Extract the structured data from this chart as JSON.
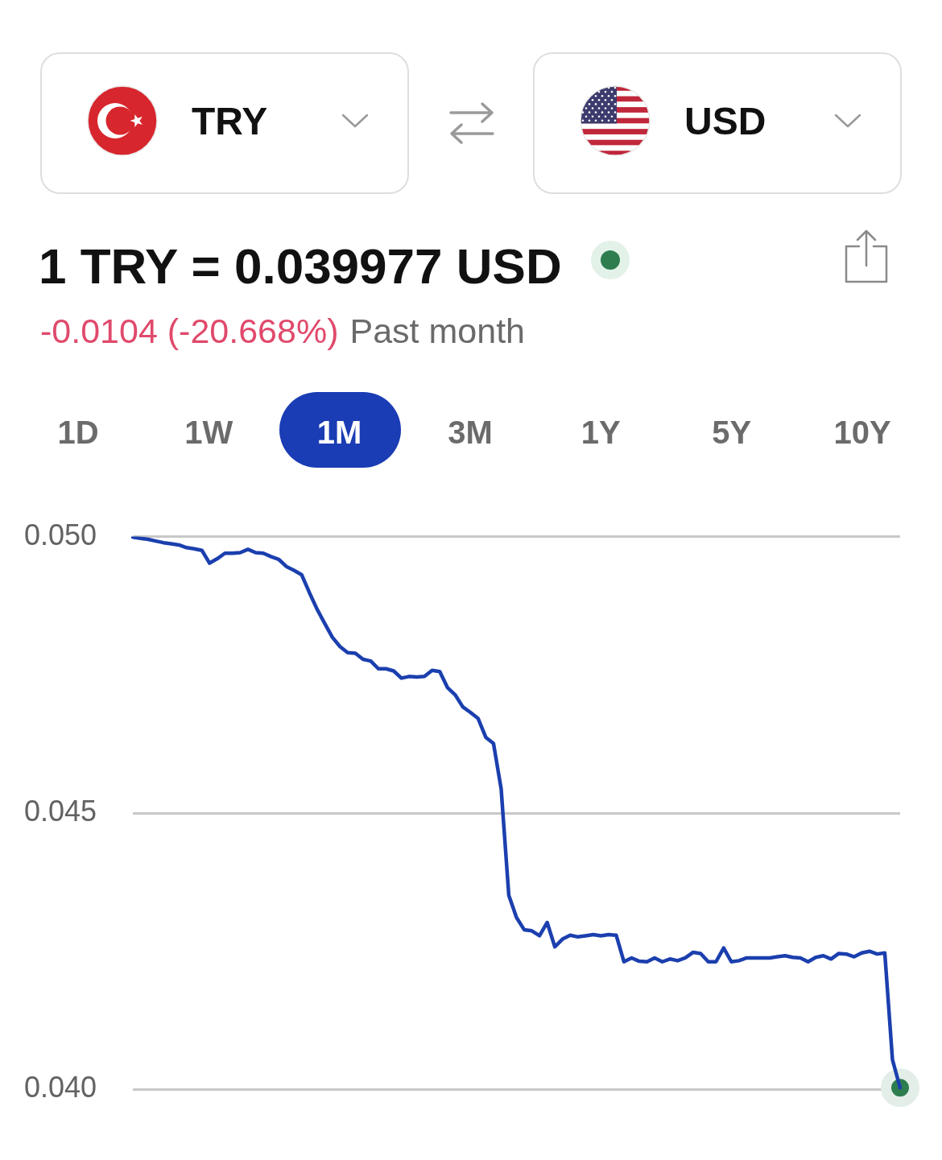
{
  "chart_data": {
    "type": "line",
    "title": "1 TRY = 0.039977 USD",
    "subtitle": "-0.0104 (-20.668%)",
    "annotations": [
      "TRY",
      "USD",
      "Past month",
      "1D",
      "1W",
      "1M",
      "3M",
      "1Y",
      "5Y",
      "10Y"
    ],
    "categories": [
      null,
      null,
      null,
      null,
      null,
      null,
      null,
      null,
      null,
      null,
      null,
      null,
      null,
      null,
      null,
      null,
      null,
      null,
      null,
      null,
      null,
      null,
      null,
      null,
      null,
      null,
      null,
      null,
      null,
      null,
      null,
      null,
      null,
      null,
      null,
      null,
      null,
      null,
      null,
      null,
      null,
      null,
      null,
      null,
      null,
      null,
      null,
      null,
      null,
      null,
      null,
      null,
      null,
      null,
      null,
      null,
      null,
      null,
      null,
      null,
      null,
      null,
      null,
      null,
      null,
      null,
      null,
      null,
      null,
      null,
      null,
      null,
      null,
      null,
      null,
      null,
      null,
      null,
      null,
      null,
      null,
      null,
      null,
      null,
      null,
      null,
      null,
      null,
      null,
      null,
      null,
      null,
      null,
      null,
      null,
      null,
      null,
      null,
      null,
      null,
      null
    ],
    "series": [
      {
        "type": "line",
        "color": "#1b3fae",
        "values": [
          0.04999,
          0.04997,
          0.04995,
          0.04992,
          0.04989,
          0.04987,
          0.04985,
          0.0498,
          0.04978,
          0.04975,
          0.04952,
          0.0496,
          0.0497,
          0.0497,
          0.04971,
          0.04977,
          0.04971,
          0.0497,
          0.04964,
          0.04959,
          0.04946,
          0.04939,
          0.04931,
          0.04899,
          0.04869,
          0.04843,
          0.04818,
          0.04801,
          0.0479,
          0.04789,
          0.04778,
          0.04775,
          0.04761,
          0.04761,
          0.04757,
          0.04744,
          0.04747,
          0.04746,
          0.04747,
          0.04758,
          0.04756,
          0.04727,
          0.04714,
          0.04692,
          0.04682,
          0.04671,
          0.04637,
          0.04626,
          0.04544,
          0.04351,
          0.04311,
          0.04289,
          0.04287,
          0.04278,
          0.04302,
          0.04258,
          0.04272,
          0.04279,
          0.04276,
          0.04278,
          0.0428,
          0.04278,
          0.0428,
          0.04279,
          0.04231,
          0.04238,
          0.04232,
          0.04231,
          0.04238,
          0.04231,
          0.04236,
          0.04233,
          0.04238,
          0.04248,
          0.04246,
          0.04231,
          0.04231,
          0.04256,
          0.04231,
          0.04233,
          0.04238,
          0.04238,
          0.04238,
          0.04238,
          0.0424,
          0.04242,
          0.04239,
          0.04238,
          0.04231,
          0.04239,
          0.04242,
          0.04236,
          0.04246,
          0.04245,
          0.0424,
          0.04247,
          0.0425,
          0.04245,
          0.04247,
          0.04054,
          0.04003
        ]
      },
      {
        "type": "scatter",
        "color": "#2e7d4f",
        "marker": "circle",
        "values": [
          null,
          null,
          null,
          null,
          null,
          null,
          null,
          null,
          null,
          null,
          null,
          null,
          null,
          null,
          null,
          null,
          null,
          null,
          null,
          null,
          null,
          null,
          null,
          null,
          null,
          null,
          null,
          null,
          null,
          null,
          null,
          null,
          null,
          null,
          null,
          null,
          null,
          null,
          null,
          null,
          null,
          null,
          null,
          null,
          null,
          null,
          null,
          null,
          null,
          null,
          null,
          null,
          null,
          null,
          null,
          null,
          null,
          null,
          null,
          null,
          null,
          null,
          null,
          null,
          null,
          null,
          null,
          null,
          null,
          null,
          null,
          null,
          null,
          null,
          null,
          null,
          null,
          null,
          null,
          null,
          null,
          null,
          null,
          null,
          null,
          null,
          null,
          null,
          null,
          null,
          null,
          null,
          null,
          null,
          null,
          null,
          null,
          null,
          null,
          null,
          0.04003
        ]
      }
    ],
    "ylim": [
      0.04,
      0.05
    ],
    "yticks": [
      {
        "value": 0.04,
        "label": "0.040"
      },
      {
        "value": 0.045,
        "label": "0.045"
      },
      {
        "value": 0.05,
        "label": "0.050"
      }
    ],
    "grid": "y",
    "tick_labels": "y"
  }
}
